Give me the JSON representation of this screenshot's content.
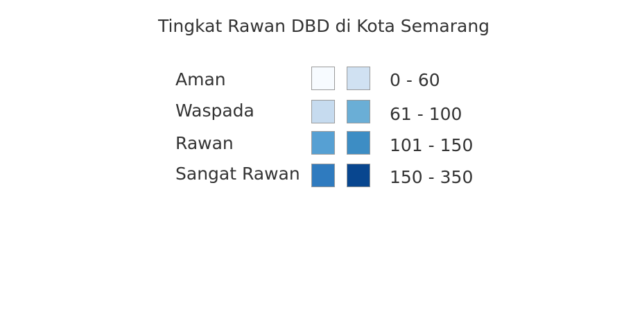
{
  "legend": {
    "title": "Tingkat Rawan DBD di Kota Semarang",
    "rows": [
      {
        "label": "Aman",
        "range": "0 - 60",
        "colors": [
          "#f7fbff",
          "#d0e1f2"
        ]
      },
      {
        "label": "Waspada",
        "range": "61 - 100",
        "colors": [
          "#c6dbef",
          "#6aaed6"
        ]
      },
      {
        "label": "Rawan",
        "range": "101 - 150",
        "colors": [
          "#56a0d3",
          "#3d8dc4"
        ]
      },
      {
        "label": "Sangat Rawan",
        "range": "150 - 350",
        "colors": [
          "#2f7bbf",
          "#08468f"
        ]
      }
    ]
  }
}
